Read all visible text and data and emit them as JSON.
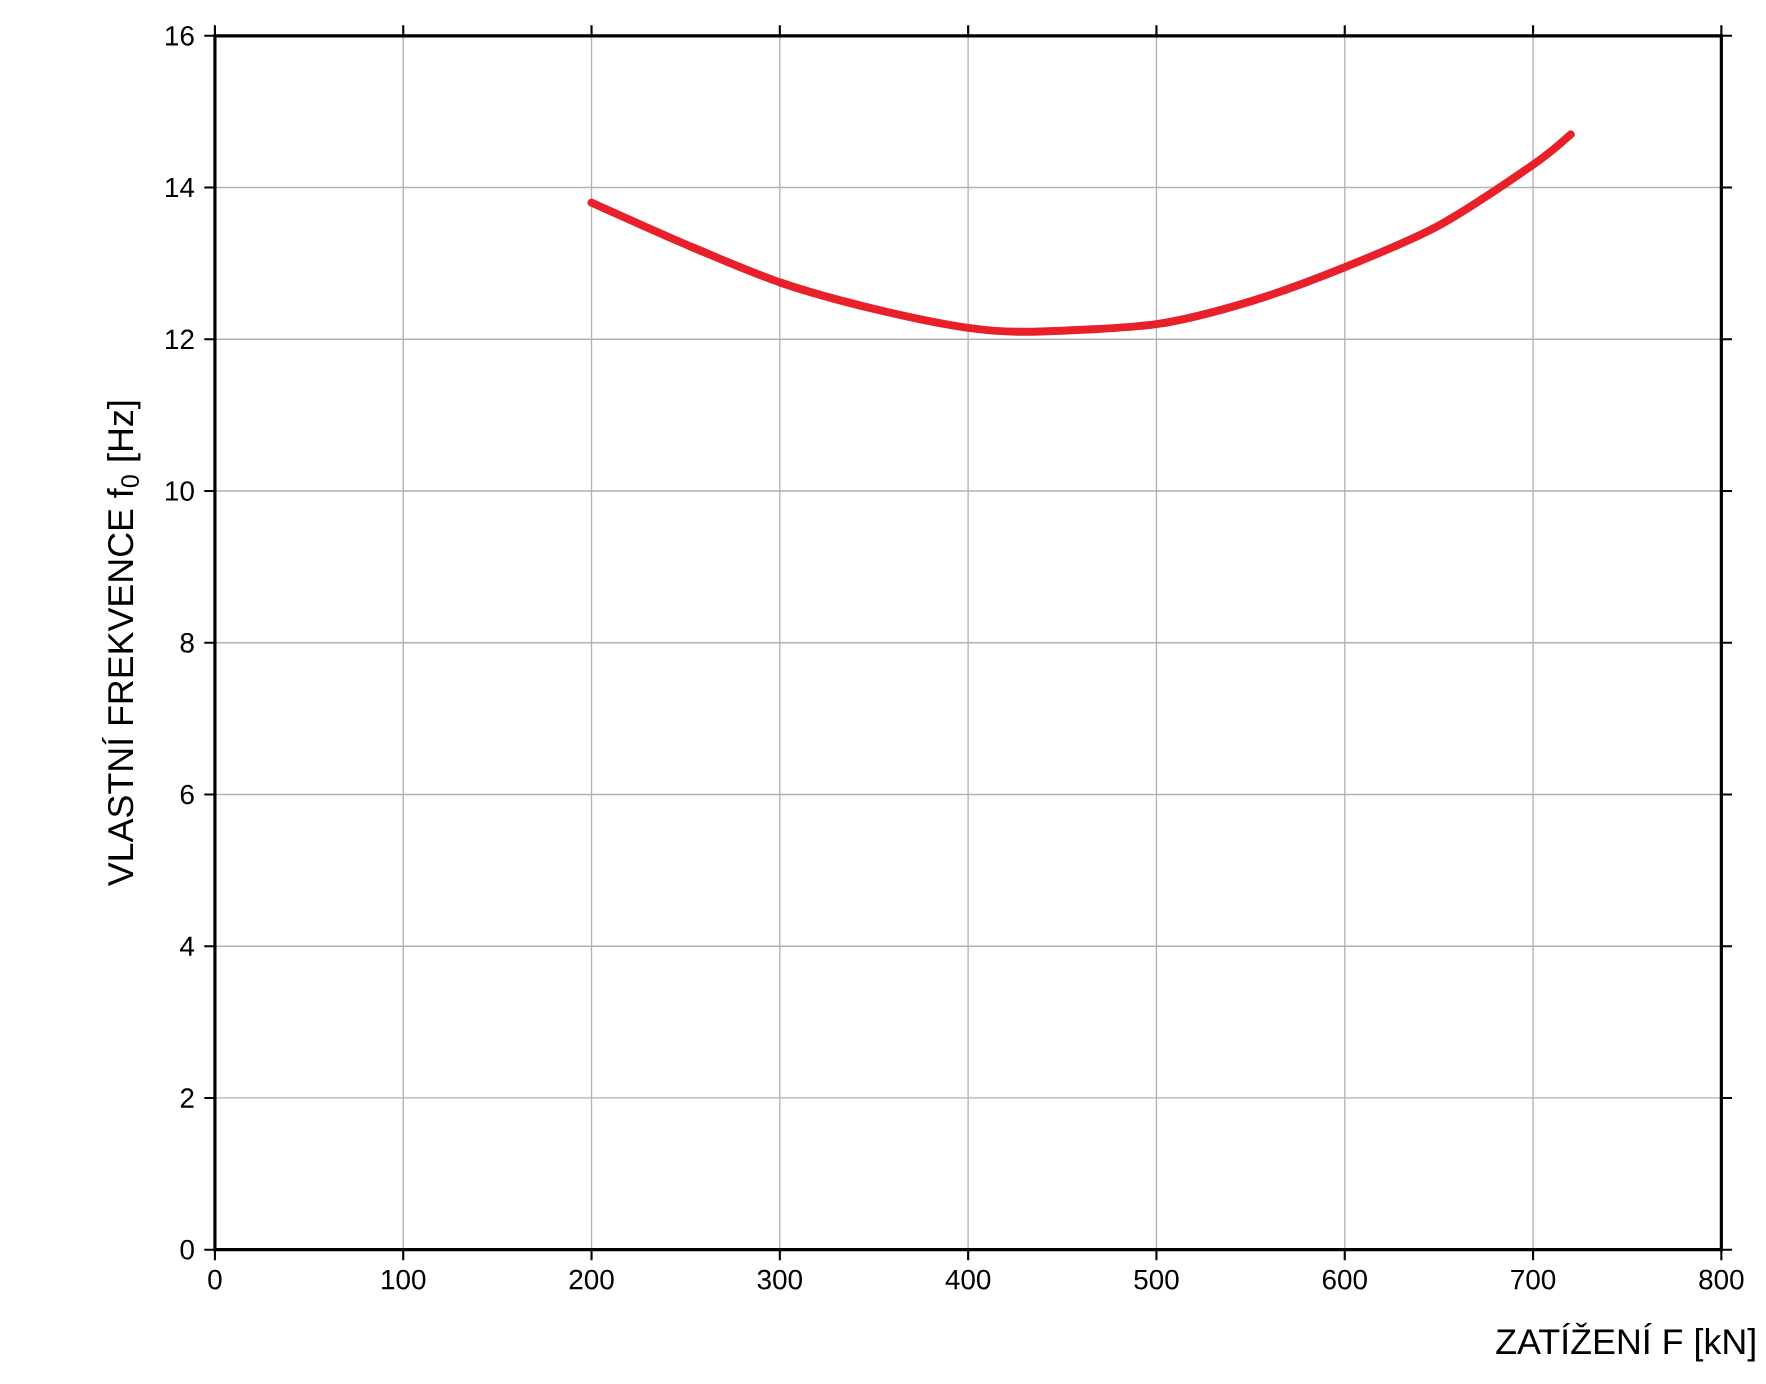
{
  "chart_data": {
    "type": "line",
    "xlabel": "ZATÍŽENÍ F [kN]",
    "ylabel": "VLASTNÍ FREKVENCE f$_{0}$ [Hz]",
    "x": [
      200,
      250,
      300,
      350,
      400,
      435,
      500,
      550,
      600,
      650,
      700,
      720
    ],
    "series": [
      {
        "color": "#e8202a",
        "values": [
          13.8,
          13.25,
          12.75,
          12.4,
          12.15,
          12.1,
          12.2,
          12.5,
          12.95,
          13.5,
          14.3,
          14.7
        ]
      }
    ],
    "xlim": [
      0,
      800
    ],
    "ylim": [
      0,
      16
    ],
    "xticks": [
      0,
      100,
      200,
      300,
      400,
      500,
      600,
      700,
      800
    ],
    "yticks": [
      0,
      2,
      4,
      6,
      8,
      10,
      12,
      14,
      16
    ],
    "grid": true,
    "marker": "none",
    "line_style": "solid"
  }
}
